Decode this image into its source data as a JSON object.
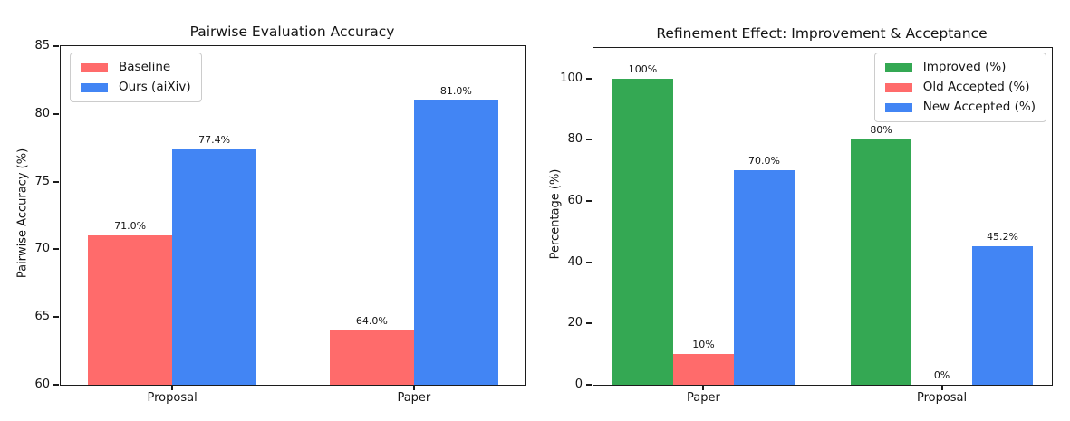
{
  "figure": {
    "background": "#ffffff",
    "text_color": "#141414",
    "spine_color": "#1c1c1c"
  },
  "chart_data": [
    {
      "type": "bar",
      "title": "Pairwise Evaluation Accuracy",
      "xlabel": "",
      "ylabel": "Pairwise Accuracy (%)",
      "categories": [
        "Proposal",
        "Paper"
      ],
      "series": [
        {
          "name": "Baseline",
          "color": "#ff6b6b",
          "values": [
            71.0,
            64.0
          ],
          "bar_labels": [
            "71.0%",
            "64.0%"
          ]
        },
        {
          "name": "Ours (aiXiv)",
          "color": "#4285f4",
          "values": [
            77.4,
            81.0
          ],
          "bar_labels": [
            "77.4%",
            "81.0%"
          ]
        }
      ],
      "ylim": [
        60,
        85
      ],
      "yticks": [
        60,
        65,
        70,
        75,
        80,
        85
      ],
      "ytick_labels": [
        "60",
        "65",
        "70",
        "75",
        "80",
        "85"
      ],
      "grid": false,
      "legend_position": "top-left"
    },
    {
      "type": "bar",
      "title": "Refinement Effect: Improvement & Acceptance",
      "xlabel": "",
      "ylabel": "Percentage (%)",
      "categories": [
        "Paper",
        "Proposal"
      ],
      "series": [
        {
          "name": "Improved (%)",
          "color": "#34a853",
          "values": [
            100,
            80
          ],
          "bar_labels": [
            "100%",
            "80%"
          ]
        },
        {
          "name": "Old Accepted (%)",
          "color": "#ff6b6b",
          "values": [
            10,
            0
          ],
          "bar_labels": [
            "10%",
            "0%"
          ]
        },
        {
          "name": "New Accepted (%)",
          "color": "#4285f4",
          "values": [
            70.0,
            45.2
          ],
          "bar_labels": [
            "70.0%",
            "45.2%"
          ]
        }
      ],
      "ylim": [
        0,
        110
      ],
      "yticks": [
        0,
        20,
        40,
        60,
        80,
        100
      ],
      "ytick_labels": [
        "0",
        "20",
        "40",
        "60",
        "80",
        "100"
      ],
      "grid": false,
      "legend_position": "top-right"
    }
  ]
}
